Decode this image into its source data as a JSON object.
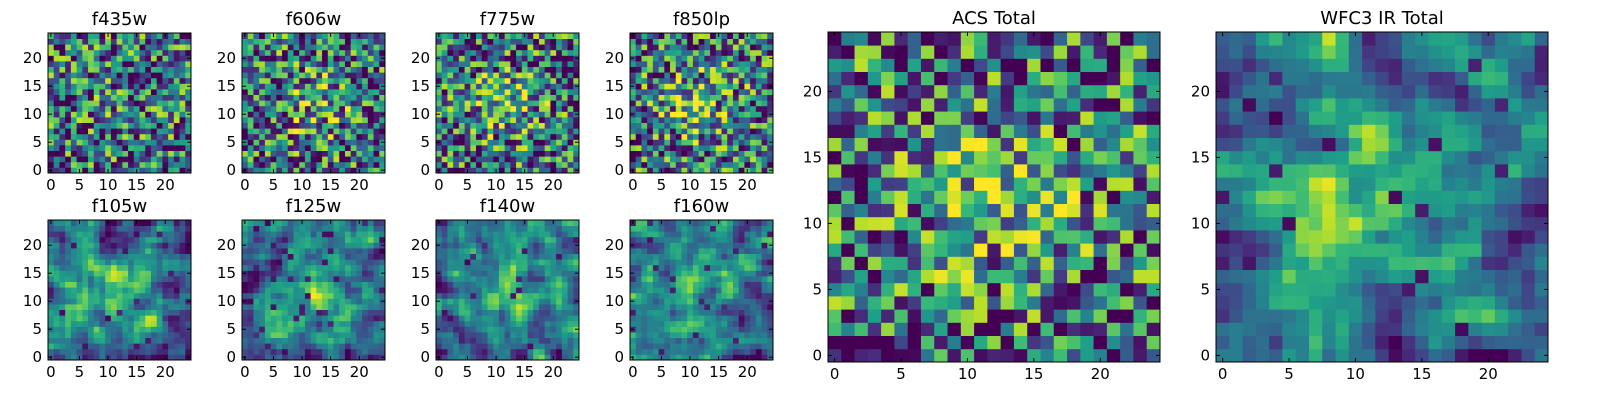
{
  "chart_data": [
    {
      "type": "heatmap",
      "title": "f435w",
      "xticks": [
        "0",
        "5",
        "10",
        "15",
        "20"
      ],
      "yticks": [
        "0",
        "5",
        "10",
        "15",
        "20"
      ],
      "xlim": [
        -0.5,
        24.5
      ],
      "ylim": [
        -0.5,
        24.5
      ],
      "grid": false,
      "colormap": "viridis",
      "pixel_size": 6
    },
    {
      "type": "heatmap",
      "title": "f606w",
      "xticks": [
        "0",
        "5",
        "10",
        "15",
        "20"
      ],
      "yticks": [
        "0",
        "5",
        "10",
        "15",
        "20"
      ],
      "xlim": [
        -0.5,
        24.5
      ],
      "ylim": [
        -0.5,
        24.5
      ],
      "grid": false,
      "colormap": "viridis",
      "pixel_size": 6
    },
    {
      "type": "heatmap",
      "title": "f775w",
      "xticks": [
        "0",
        "5",
        "10",
        "15",
        "20"
      ],
      "yticks": [
        "0",
        "5",
        "10",
        "15",
        "20"
      ],
      "xlim": [
        -0.5,
        24.5
      ],
      "ylim": [
        -0.5,
        24.5
      ],
      "grid": false,
      "colormap": "viridis",
      "pixel_size": 6
    },
    {
      "type": "heatmap",
      "title": "f850lp",
      "xticks": [
        "0",
        "5",
        "10",
        "15",
        "20"
      ],
      "yticks": [
        "0",
        "5",
        "10",
        "15",
        "20"
      ],
      "xlim": [
        -0.5,
        24.5
      ],
      "ylim": [
        -0.5,
        24.5
      ],
      "grid": false,
      "colormap": "viridis",
      "pixel_size": 6
    },
    {
      "type": "heatmap",
      "title": "f105w",
      "xticks": [
        "0",
        "5",
        "10",
        "15",
        "20"
      ],
      "yticks": [
        "0",
        "5",
        "10",
        "15",
        "20"
      ],
      "xlim": [
        -0.5,
        24.5
      ],
      "ylim": [
        -0.5,
        24.5
      ],
      "grid": false,
      "colormap": "viridis",
      "pixel_size": 6
    },
    {
      "type": "heatmap",
      "title": "f125w",
      "xticks": [
        "0",
        "5",
        "10",
        "15",
        "20"
      ],
      "yticks": [
        "0",
        "5",
        "10",
        "15",
        "20"
      ],
      "xlim": [
        -0.5,
        24.5
      ],
      "ylim": [
        -0.5,
        24.5
      ],
      "grid": false,
      "colormap": "viridis",
      "pixel_size": 6
    },
    {
      "type": "heatmap",
      "title": "f140w",
      "xticks": [
        "0",
        "5",
        "10",
        "15",
        "20"
      ],
      "yticks": [
        "0",
        "5",
        "10",
        "15",
        "20"
      ],
      "xlim": [
        -0.5,
        24.5
      ],
      "ylim": [
        -0.5,
        24.5
      ],
      "grid": false,
      "colormap": "viridis",
      "pixel_size": 6
    },
    {
      "type": "heatmap",
      "title": "f160w",
      "xticks": [
        "0",
        "5",
        "10",
        "15",
        "20"
      ],
      "yticks": [
        "0",
        "5",
        "10",
        "15",
        "20"
      ],
      "xlim": [
        -0.5,
        24.5
      ],
      "ylim": [
        -0.5,
        24.5
      ],
      "grid": false,
      "colormap": "viridis",
      "pixel_size": 6
    },
    {
      "type": "heatmap",
      "title": "ACS Total",
      "xticks": [
        "0",
        "5",
        "10",
        "15",
        "20"
      ],
      "yticks": [
        "0",
        "5",
        "10",
        "15",
        "20"
      ],
      "xlim": [
        -0.5,
        24.5
      ],
      "ylim": [
        -0.5,
        24.5
      ],
      "grid": false,
      "colormap": "viridis",
      "pixel_size": 13
    },
    {
      "type": "heatmap",
      "title": "WFC3 IR Total",
      "xticks": [
        "0",
        "5",
        "10",
        "15",
        "20"
      ],
      "yticks": [
        "0",
        "5",
        "10",
        "15",
        "20"
      ],
      "xlim": [
        -0.5,
        24.5
      ],
      "ylim": [
        -0.5,
        24.5
      ],
      "grid": false,
      "colormap": "viridis",
      "pixel_size": 13
    }
  ]
}
